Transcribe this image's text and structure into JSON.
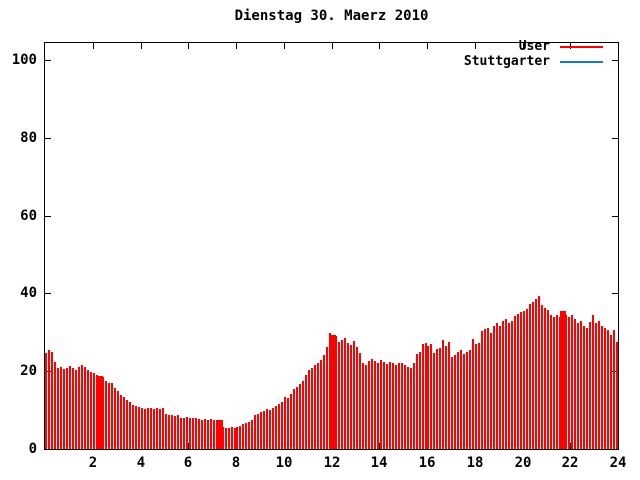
{
  "title": "Dienstag 30. Maerz 2010",
  "chart_data": {
    "type": "bar",
    "subtype": "impulses",
    "title": "Dienstag 30. Maerz 2010",
    "xlabel": "",
    "ylabel": "",
    "xlim": [
      0,
      24
    ],
    "ylim": [
      0,
      104
    ],
    "x_ticks": [
      2,
      4,
      6,
      8,
      10,
      12,
      14,
      16,
      18,
      20,
      22,
      24
    ],
    "y_ticks": [
      0,
      20,
      40,
      60,
      80,
      100
    ],
    "grid": false,
    "legend_position": "top-right",
    "background": "#ffffff",
    "axis_color": "#000000",
    "interval_minutes": 7.5,
    "series": [
      {
        "name": "User",
        "color": "#ff0000",
        "values": [
          24.6,
          25.4,
          25.0,
          22.4,
          20.7,
          21.1,
          20.5,
          20.9,
          21.3,
          20.7,
          20.3,
          21.0,
          21.5,
          21.0,
          20.4,
          19.9,
          19.5,
          19.0,
          18.7,
          18.4,
          17.5,
          17.0,
          16.9,
          15.6,
          15.0,
          13.9,
          13.4,
          12.7,
          12.1,
          11.3,
          11.0,
          10.9,
          10.5,
          10.4,
          10.6,
          10.5,
          10.3,
          10.5,
          10.4,
          10.5,
          8.9,
          8.7,
          8.8,
          8.6,
          8.7,
          8.0,
          7.9,
          8.1,
          8.0,
          7.9,
          8.0,
          7.6,
          7.5,
          7.7,
          7.5,
          7.6,
          7.5,
          7.4,
          7.5,
          5.6,
          5.4,
          5.5,
          5.7,
          5.5,
          5.6,
          5.8,
          6.3,
          6.6,
          7.0,
          7.5,
          8.7,
          8.9,
          9.4,
          9.8,
          10.2,
          9.9,
          10.5,
          11.1,
          11.5,
          12.0,
          13.3,
          13.2,
          14.1,
          15.4,
          15.9,
          16.7,
          17.6,
          19.0,
          20.3,
          20.7,
          21.6,
          22.0,
          22.9,
          24.2,
          26.2,
          29.8,
          29.4,
          29.0,
          27.6,
          28.0,
          28.6,
          27.2,
          26.8,
          27.7,
          26.2,
          24.7,
          22.0,
          21.6,
          22.6,
          23.1,
          22.7,
          22.2,
          22.8,
          22.3,
          21.9,
          22.4,
          22.1,
          21.7,
          22.2,
          22.0,
          21.6,
          21.2,
          20.8,
          22.1,
          24.4,
          25.0,
          26.9,
          27.2,
          26.4,
          27.0,
          24.8,
          25.6,
          26.0,
          28.0,
          26.4,
          27.6,
          23.7,
          24.1,
          25.0,
          25.4,
          24.5,
          25.0,
          25.4,
          28.3,
          27.0,
          27.2,
          30.4,
          30.8,
          31.2,
          29.9,
          31.6,
          32.5,
          31.6,
          33.0,
          33.4,
          32.5,
          33.0,
          34.3,
          34.7,
          35.1,
          35.6,
          36.0,
          37.3,
          37.7,
          38.5,
          39.4,
          37.0,
          36.2,
          35.7,
          34.4,
          34.0,
          34.4,
          34.0,
          35.6,
          34.5,
          34.0,
          34.5,
          33.5,
          32.5,
          33.0,
          31.5,
          31.0,
          32.7,
          34.4,
          32.5,
          33.0,
          31.6,
          31.2,
          30.6,
          29.4,
          30.6,
          27.5
        ],
        "wide_indices": [
          18,
          58,
          96,
          173
        ]
      },
      {
        "name": "Stuttgarter",
        "color": "#1877d2",
        "values": []
      }
    ]
  }
}
